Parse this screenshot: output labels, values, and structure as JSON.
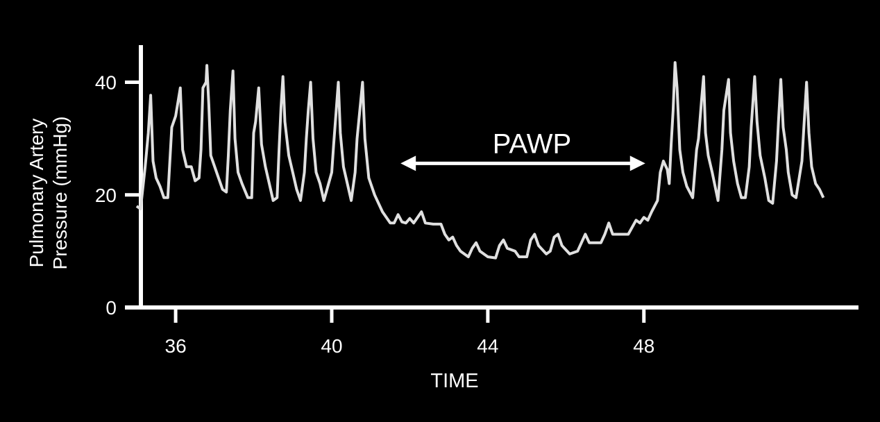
{
  "chart_data": {
    "type": "line",
    "title": "",
    "xlabel": "TIME",
    "ylabel": [
      "Pulmonary Artery",
      "Pressure (mmHg)"
    ],
    "xlim": [
      34.7,
      53.5
    ],
    "ylim": [
      0,
      46.6
    ],
    "xticks": [
      36,
      40,
      44,
      48
    ],
    "yticks": [
      0,
      20,
      40
    ],
    "grid": false,
    "colors": {
      "background": "#000000",
      "axis": "#ffffff",
      "line": "#e0e0e0",
      "text": "#ffffff"
    },
    "annotation": {
      "label": "PAWP",
      "type": "double-arrow",
      "x_start": 41.8,
      "x_end": 48.0,
      "y": 25.6
    },
    "series": [
      {
        "points": [
          [
            35.0,
            18
          ],
          [
            35.1,
            17.5
          ],
          [
            35.22,
            25
          ],
          [
            35.3,
            31
          ],
          [
            35.36,
            37.7
          ],
          [
            35.42,
            26
          ],
          [
            35.5,
            23
          ],
          [
            35.6,
            21.5
          ],
          [
            35.7,
            19.5
          ],
          [
            35.8,
            19.5
          ],
          [
            35.9,
            32
          ],
          [
            36.0,
            34
          ],
          [
            36.12,
            39
          ],
          [
            36.18,
            28
          ],
          [
            36.28,
            25
          ],
          [
            36.4,
            25
          ],
          [
            36.5,
            22.5
          ],
          [
            36.6,
            23
          ],
          [
            36.65,
            28
          ],
          [
            36.7,
            39
          ],
          [
            36.78,
            40
          ],
          [
            36.8,
            43
          ],
          [
            36.85,
            36
          ],
          [
            36.9,
            27
          ],
          [
            37.0,
            25
          ],
          [
            37.1,
            23
          ],
          [
            37.2,
            21
          ],
          [
            37.3,
            20.5
          ],
          [
            37.35,
            27
          ],
          [
            37.4,
            35
          ],
          [
            37.47,
            42
          ],
          [
            37.52,
            30
          ],
          [
            37.6,
            24
          ],
          [
            37.7,
            22
          ],
          [
            37.85,
            19.5
          ],
          [
            37.95,
            19.5
          ],
          [
            38.0,
            31
          ],
          [
            38.05,
            33
          ],
          [
            38.13,
            39
          ],
          [
            38.2,
            29
          ],
          [
            38.3,
            25
          ],
          [
            38.4,
            22
          ],
          [
            38.5,
            19
          ],
          [
            38.6,
            19.5
          ],
          [
            38.65,
            28
          ],
          [
            38.7,
            35.5
          ],
          [
            38.75,
            41
          ],
          [
            38.8,
            33
          ],
          [
            38.9,
            27
          ],
          [
            39.0,
            24
          ],
          [
            39.1,
            21
          ],
          [
            39.2,
            19
          ],
          [
            39.3,
            24
          ],
          [
            39.35,
            30
          ],
          [
            39.4,
            35
          ],
          [
            39.46,
            40
          ],
          [
            39.52,
            30
          ],
          [
            39.6,
            24
          ],
          [
            39.7,
            22
          ],
          [
            39.8,
            19
          ],
          [
            40.0,
            24
          ],
          [
            40.05,
            29
          ],
          [
            40.17,
            40
          ],
          [
            40.22,
            31
          ],
          [
            40.3,
            25
          ],
          [
            40.4,
            22
          ],
          [
            40.5,
            19
          ],
          [
            40.6,
            24
          ],
          [
            40.65,
            30
          ],
          [
            40.79,
            40
          ],
          [
            40.85,
            30
          ],
          [
            40.95,
            23
          ],
          [
            41.1,
            20
          ],
          [
            41.3,
            17
          ],
          [
            41.5,
            15
          ],
          [
            41.6,
            15
          ],
          [
            41.7,
            16.5
          ],
          [
            41.8,
            15.2
          ],
          [
            41.9,
            15
          ],
          [
            42.0,
            15.8
          ],
          [
            42.1,
            15
          ],
          [
            42.3,
            17
          ],
          [
            42.4,
            15
          ],
          [
            42.6,
            14.8
          ],
          [
            42.8,
            14.8
          ],
          [
            42.9,
            13
          ],
          [
            43.0,
            12
          ],
          [
            43.1,
            12.5
          ],
          [
            43.2,
            11
          ],
          [
            43.3,
            10
          ],
          [
            43.5,
            9
          ],
          [
            43.6,
            10.5
          ],
          [
            43.7,
            11.5
          ],
          [
            43.8,
            10
          ],
          [
            44.0,
            9
          ],
          [
            44.2,
            8.8
          ],
          [
            44.3,
            11
          ],
          [
            44.4,
            12
          ],
          [
            44.5,
            10.5
          ],
          [
            44.7,
            10
          ],
          [
            44.8,
            9
          ],
          [
            45.0,
            9
          ],
          [
            45.1,
            12
          ],
          [
            45.2,
            13
          ],
          [
            45.3,
            11
          ],
          [
            45.5,
            9.5
          ],
          [
            45.6,
            10
          ],
          [
            45.7,
            12.5
          ],
          [
            45.8,
            13
          ],
          [
            45.9,
            11
          ],
          [
            46.1,
            9.5
          ],
          [
            46.3,
            10
          ],
          [
            46.5,
            13
          ],
          [
            46.6,
            11.5
          ],
          [
            46.9,
            11.5
          ],
          [
            47.0,
            13
          ],
          [
            47.1,
            15
          ],
          [
            47.2,
            13
          ],
          [
            47.6,
            13
          ],
          [
            47.8,
            15.5
          ],
          [
            47.9,
            15
          ],
          [
            48.0,
            16
          ],
          [
            48.1,
            15.5
          ],
          [
            48.2,
            17
          ],
          [
            48.35,
            19
          ],
          [
            48.42,
            24
          ],
          [
            48.5,
            26
          ],
          [
            48.6,
            24.5
          ],
          [
            48.65,
            22
          ],
          [
            48.7,
            29
          ],
          [
            48.75,
            35
          ],
          [
            48.8,
            43.5
          ],
          [
            48.85,
            39
          ],
          [
            48.92,
            28
          ],
          [
            49.0,
            24
          ],
          [
            49.1,
            21.5
          ],
          [
            49.25,
            19.5
          ],
          [
            49.35,
            28
          ],
          [
            49.4,
            30
          ],
          [
            49.48,
            37
          ],
          [
            49.53,
            41
          ],
          [
            49.58,
            31
          ],
          [
            49.65,
            27
          ],
          [
            49.75,
            24
          ],
          [
            49.9,
            19
          ],
          [
            50.0,
            28
          ],
          [
            50.05,
            35
          ],
          [
            50.17,
            40.5
          ],
          [
            50.22,
            31
          ],
          [
            50.3,
            26
          ],
          [
            50.4,
            22
          ],
          [
            50.5,
            19.5
          ],
          [
            50.6,
            19.5
          ],
          [
            50.7,
            25
          ],
          [
            50.75,
            32
          ],
          [
            50.84,
            41
          ],
          [
            50.9,
            33
          ],
          [
            50.98,
            27
          ],
          [
            51.1,
            23
          ],
          [
            51.2,
            19
          ],
          [
            51.3,
            18.5
          ],
          [
            51.4,
            26
          ],
          [
            51.45,
            33
          ],
          [
            51.51,
            40.5
          ],
          [
            51.57,
            32
          ],
          [
            51.65,
            28
          ],
          [
            51.7,
            24
          ],
          [
            51.8,
            20
          ],
          [
            51.9,
            19.5
          ],
          [
            52.05,
            26
          ],
          [
            52.1,
            32
          ],
          [
            52.17,
            40
          ],
          [
            52.23,
            31
          ],
          [
            52.3,
            25
          ],
          [
            52.4,
            22
          ],
          [
            52.5,
            21
          ],
          [
            52.6,
            19.5
          ]
        ]
      }
    ]
  }
}
